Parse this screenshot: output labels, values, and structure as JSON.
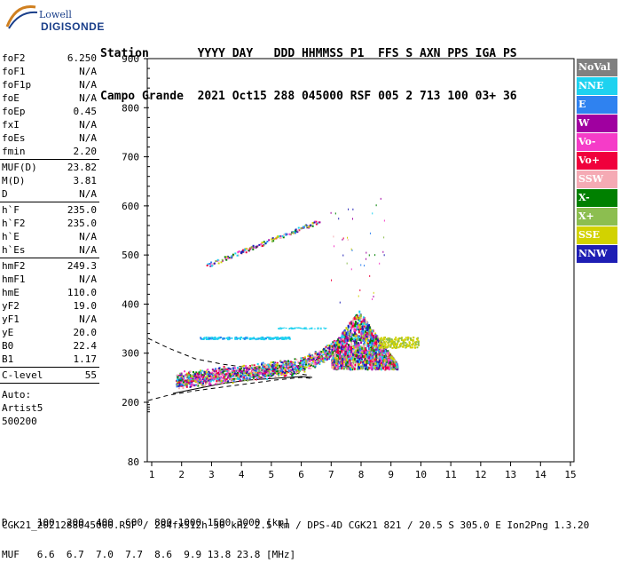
{
  "logo": {
    "top": "Lowell",
    "bottom": "DIGISONDE"
  },
  "header": {
    "line1": "Station       YYYY DAY   DDD HHMMSS P1  FFS S AXN PPS IGA PS",
    "line2": "Campo Grande  2021 Oct15 288 045000 RSF 005 2 713 100 03+ 36"
  },
  "params": {
    "group1": [
      {
        "k": "foF2",
        "v": "6.250"
      },
      {
        "k": "foF1",
        "v": "N/A"
      },
      {
        "k": "foF1p",
        "v": "N/A"
      },
      {
        "k": "foE",
        "v": "N/A"
      },
      {
        "k": "foEp",
        "v": "0.45"
      },
      {
        "k": "fxI",
        "v": "N/A"
      },
      {
        "k": "foEs",
        "v": "N/A"
      },
      {
        "k": "fmin",
        "v": "2.20"
      }
    ],
    "group2": [
      {
        "k": "MUF(D)",
        "v": "23.82"
      },
      {
        "k": "M(D)",
        "v": "3.81"
      },
      {
        "k": "D",
        "v": "N/A"
      }
    ],
    "group3": [
      {
        "k": "h`F",
        "v": "235.0"
      },
      {
        "k": "h`F2",
        "v": "235.0"
      },
      {
        "k": "h`E",
        "v": "N/A"
      },
      {
        "k": "h`Es",
        "v": "N/A"
      }
    ],
    "group4": [
      {
        "k": "hmF2",
        "v": "249.3"
      },
      {
        "k": "hmF1",
        "v": "N/A"
      },
      {
        "k": "hmE",
        "v": "110.0"
      },
      {
        "k": "yF2",
        "v": "19.0"
      },
      {
        "k": "yF1",
        "v": "N/A"
      },
      {
        "k": "yE",
        "v": "20.0"
      },
      {
        "k": "B0",
        "v": "22.4"
      },
      {
        "k": "B1",
        "v": "1.17"
      }
    ],
    "group5": [
      {
        "k": "C-level",
        "v": "55"
      }
    ],
    "auto_lines": [
      "Auto:",
      "Artist5",
      "500200"
    ]
  },
  "legend": [
    {
      "label": "NoVal",
      "color": "#808080"
    },
    {
      "label": "NNE",
      "color": "#1ed2f0"
    },
    {
      "label": "E",
      "color": "#2f82f0"
    },
    {
      "label": "W",
      "color": "#a000a0"
    },
    {
      "label": "Vo-",
      "color": "#f53cc8"
    },
    {
      "label": "Vo+",
      "color": "#f0003c"
    },
    {
      "label": "SSW",
      "color": "#f5aab4"
    },
    {
      "label": "X-",
      "color": "#008000"
    },
    {
      "label": "X+",
      "color": "#8cbe50"
    },
    {
      "label": "SSE",
      "color": "#d2d200"
    },
    {
      "label": "NNW",
      "color": "#1e1eb4"
    }
  ],
  "chart_data": {
    "type": "scatter",
    "x_ticks": [
      "1",
      "2",
      "3",
      "4",
      "5",
      "6",
      "7",
      "8",
      "9",
      "10",
      "11",
      "12",
      "13",
      "14",
      "15"
    ],
    "y_ticks": [
      "80",
      "200",
      "300",
      "400",
      "500",
      "600",
      "700",
      "800",
      "900"
    ],
    "xlim": [
      1,
      15
    ],
    "ylim": [
      80,
      900
    ]
  },
  "footer": {
    "line1": "D     100  200  400  600  800 1000 1500 3000 [km]",
    "line2": "MUF   6.6  6.7  7.0  7.7  8.6  9.9 13.8 23.8 [MHz]",
    "file": "CGK21_2021288045000.RSF / 284fx512h 50 kHz 2.5 km / DPS-4D CGK21 821 / 20.5 S 305.0 E Ion2Png 1.3.20"
  }
}
